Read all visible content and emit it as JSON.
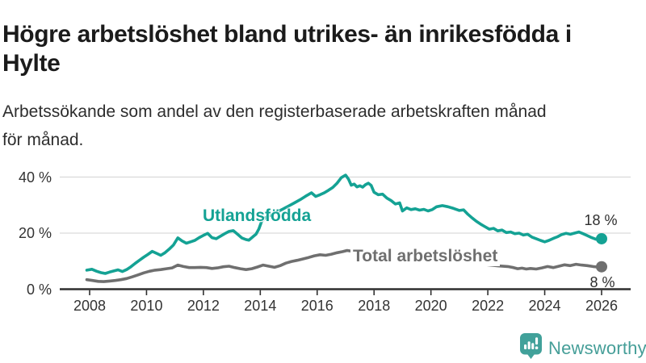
{
  "header": {
    "title_line1": "Högre arbetslöshet bland utrikes- än inrikesfödda i",
    "title_line2": "Hylte",
    "subtitle_line1": "Arbetssökande som andel av den registerbaserade arbetskraften månad",
    "subtitle_line2": "för månad."
  },
  "footer": {
    "brand": "Newsworthy",
    "brand_color": "#459e98",
    "logo_icon": "newsworthy-speech-bubble-bar-chart-icon",
    "logo_icon_color": "#41a19a"
  },
  "chart_data": {
    "type": "line",
    "title": "Högre arbetslöshet bland utrikes- än inrikesfödda i Hylte",
    "subtitle": "Arbetssökande som andel av den registerbaserade arbetskraften månad för månad.",
    "unit": "%",
    "grid": "horizontal-only",
    "legend_position": "inline-labels",
    "xlim": [
      2007.9,
      2026.3
    ],
    "ylim": [
      0,
      44
    ],
    "x_tick_years": [
      2008,
      2010,
      2012,
      2014,
      2016,
      2018,
      2020,
      2022,
      2024,
      2026
    ],
    "x_tick_labels": [
      "2008",
      "2010",
      "2012",
      "2014",
      "2016",
      "2018",
      "2020",
      "2022",
      "2024",
      "2026"
    ],
    "y_tick_values": [
      0,
      20,
      40
    ],
    "y_tick_labels": [
      "0 %",
      "20 %",
      "40 %"
    ],
    "grid_color": "#d9d9d9",
    "axis_color": "#2f2f2f",
    "series": [
      {
        "name": "Utlandsfödda",
        "color": "#14a294",
        "end_label": "18 %",
        "end_value": 18,
        "points": [
          [
            2007.9,
            6.8
          ],
          [
            2008.08,
            7.1
          ],
          [
            2008.25,
            6.4
          ],
          [
            2008.4,
            5.9
          ],
          [
            2008.55,
            5.6
          ],
          [
            2008.7,
            6.1
          ],
          [
            2008.85,
            6.5
          ],
          [
            2009.0,
            6.9
          ],
          [
            2009.15,
            6.3
          ],
          [
            2009.3,
            7.0
          ],
          [
            2009.45,
            8.0
          ],
          [
            2009.6,
            9.2
          ],
          [
            2009.75,
            10.3
          ],
          [
            2009.9,
            11.4
          ],
          [
            2010.05,
            12.4
          ],
          [
            2010.2,
            13.5
          ],
          [
            2010.35,
            12.8
          ],
          [
            2010.5,
            12.1
          ],
          [
            2010.65,
            13.0
          ],
          [
            2010.8,
            14.3
          ],
          [
            2010.95,
            15.8
          ],
          [
            2011.1,
            18.3
          ],
          [
            2011.25,
            17.2
          ],
          [
            2011.4,
            16.4
          ],
          [
            2011.55,
            16.9
          ],
          [
            2011.7,
            17.4
          ],
          [
            2011.85,
            18.4
          ],
          [
            2012.0,
            19.2
          ],
          [
            2012.15,
            19.9
          ],
          [
            2012.3,
            18.4
          ],
          [
            2012.45,
            18.0
          ],
          [
            2012.6,
            18.9
          ],
          [
            2012.75,
            19.8
          ],
          [
            2012.9,
            20.6
          ],
          [
            2013.05,
            20.9
          ],
          [
            2013.2,
            19.6
          ],
          [
            2013.35,
            18.3
          ],
          [
            2013.5,
            17.7
          ],
          [
            2013.6,
            17.5
          ],
          [
            2013.75,
            18.8
          ],
          [
            2013.85,
            19.6
          ],
          [
            2013.95,
            21.5
          ],
          [
            2014.05,
            24.3
          ],
          [
            2014.2,
            25.6
          ],
          [
            2014.4,
            26.5
          ],
          [
            2014.6,
            27.6
          ],
          [
            2014.8,
            28.6
          ],
          [
            2015.0,
            29.7
          ],
          [
            2015.2,
            30.8
          ],
          [
            2015.4,
            31.9
          ],
          [
            2015.6,
            33.2
          ],
          [
            2015.8,
            34.4
          ],
          [
            2015.95,
            33.1
          ],
          [
            2016.1,
            33.7
          ],
          [
            2016.25,
            34.4
          ],
          [
            2016.4,
            35.3
          ],
          [
            2016.55,
            36.3
          ],
          [
            2016.7,
            37.8
          ],
          [
            2016.85,
            39.8
          ],
          [
            2017.0,
            40.7
          ],
          [
            2017.1,
            39.3
          ],
          [
            2017.2,
            37.1
          ],
          [
            2017.3,
            37.5
          ],
          [
            2017.4,
            36.5
          ],
          [
            2017.5,
            36.9
          ],
          [
            2017.6,
            36.4
          ],
          [
            2017.7,
            37.3
          ],
          [
            2017.8,
            37.8
          ],
          [
            2017.9,
            37.0
          ],
          [
            2018.0,
            34.6
          ],
          [
            2018.15,
            33.7
          ],
          [
            2018.3,
            33.9
          ],
          [
            2018.45,
            32.5
          ],
          [
            2018.6,
            31.6
          ],
          [
            2018.75,
            30.4
          ],
          [
            2018.9,
            30.8
          ],
          [
            2019.0,
            27.9
          ],
          [
            2019.15,
            29.0
          ],
          [
            2019.3,
            28.4
          ],
          [
            2019.45,
            28.7
          ],
          [
            2019.6,
            28.2
          ],
          [
            2019.75,
            28.5
          ],
          [
            2019.9,
            27.9
          ],
          [
            2020.05,
            28.4
          ],
          [
            2020.2,
            29.4
          ],
          [
            2020.4,
            29.8
          ],
          [
            2020.6,
            29.4
          ],
          [
            2020.8,
            28.8
          ],
          [
            2021.0,
            28.1
          ],
          [
            2021.15,
            28.3
          ],
          [
            2021.3,
            26.7
          ],
          [
            2021.45,
            25.4
          ],
          [
            2021.6,
            24.2
          ],
          [
            2021.75,
            23.2
          ],
          [
            2021.9,
            22.3
          ],
          [
            2022.05,
            21.4
          ],
          [
            2022.2,
            21.7
          ],
          [
            2022.35,
            20.8
          ],
          [
            2022.5,
            21.1
          ],
          [
            2022.65,
            20.2
          ],
          [
            2022.8,
            20.4
          ],
          [
            2022.95,
            19.8
          ],
          [
            2023.1,
            20.0
          ],
          [
            2023.25,
            19.3
          ],
          [
            2023.4,
            19.6
          ],
          [
            2023.55,
            18.6
          ],
          [
            2023.7,
            18.0
          ],
          [
            2023.85,
            17.4
          ],
          [
            2024.0,
            16.9
          ],
          [
            2024.15,
            17.4
          ],
          [
            2024.3,
            18.1
          ],
          [
            2024.45,
            18.7
          ],
          [
            2024.6,
            19.5
          ],
          [
            2024.75,
            19.9
          ],
          [
            2024.9,
            19.6
          ],
          [
            2025.05,
            20.0
          ],
          [
            2025.2,
            20.4
          ],
          [
            2025.35,
            19.8
          ],
          [
            2025.5,
            19.1
          ],
          [
            2025.65,
            18.4
          ],
          [
            2025.8,
            17.8
          ],
          [
            2026.0,
            18.0
          ]
        ]
      },
      {
        "name": "Total arbetslöshet",
        "color": "#6f6f6f",
        "end_label": "8 %",
        "end_value": 8,
        "points": [
          [
            2007.9,
            3.4
          ],
          [
            2008.1,
            3.1
          ],
          [
            2008.3,
            2.8
          ],
          [
            2008.5,
            2.7
          ],
          [
            2008.7,
            2.9
          ],
          [
            2008.9,
            3.1
          ],
          [
            2009.1,
            3.4
          ],
          [
            2009.3,
            3.8
          ],
          [
            2009.5,
            4.4
          ],
          [
            2009.7,
            5.1
          ],
          [
            2009.9,
            5.8
          ],
          [
            2010.1,
            6.4
          ],
          [
            2010.3,
            6.8
          ],
          [
            2010.5,
            7.0
          ],
          [
            2010.7,
            7.3
          ],
          [
            2010.9,
            7.6
          ],
          [
            2011.1,
            8.6
          ],
          [
            2011.3,
            8.1
          ],
          [
            2011.5,
            7.7
          ],
          [
            2011.7,
            7.7
          ],
          [
            2011.9,
            7.8
          ],
          [
            2012.1,
            7.7
          ],
          [
            2012.3,
            7.4
          ],
          [
            2012.5,
            7.6
          ],
          [
            2012.7,
            8.0
          ],
          [
            2012.9,
            8.2
          ],
          [
            2013.1,
            7.7
          ],
          [
            2013.3,
            7.3
          ],
          [
            2013.5,
            7.0
          ],
          [
            2013.7,
            7.3
          ],
          [
            2013.9,
            7.9
          ],
          [
            2014.1,
            8.6
          ],
          [
            2014.3,
            8.2
          ],
          [
            2014.5,
            7.8
          ],
          [
            2014.7,
            8.4
          ],
          [
            2014.9,
            9.3
          ],
          [
            2015.1,
            9.9
          ],
          [
            2015.3,
            10.3
          ],
          [
            2015.5,
            10.8
          ],
          [
            2015.7,
            11.3
          ],
          [
            2015.9,
            11.9
          ],
          [
            2016.1,
            12.3
          ],
          [
            2016.3,
            12.1
          ],
          [
            2016.5,
            12.5
          ],
          [
            2016.7,
            13.0
          ],
          [
            2016.9,
            13.4
          ],
          [
            2017.05,
            13.8
          ],
          [
            2017.3,
            13.4
          ],
          [
            2017.6,
            13.0
          ],
          [
            2018.0,
            12.3
          ],
          [
            2018.5,
            11.5
          ],
          [
            2019.0,
            10.7
          ],
          [
            2019.5,
            10.1
          ],
          [
            2020.0,
            10.0
          ],
          [
            2020.4,
            10.7
          ],
          [
            2020.8,
            10.4
          ],
          [
            2021.2,
            9.8
          ],
          [
            2021.6,
            9.2
          ],
          [
            2022.0,
            8.7
          ],
          [
            2022.4,
            8.3
          ],
          [
            2022.7,
            8.1
          ],
          [
            2022.9,
            7.7
          ],
          [
            2023.05,
            7.3
          ],
          [
            2023.2,
            7.5
          ],
          [
            2023.35,
            7.2
          ],
          [
            2023.5,
            7.4
          ],
          [
            2023.7,
            7.2
          ],
          [
            2023.9,
            7.6
          ],
          [
            2024.1,
            8.1
          ],
          [
            2024.3,
            7.7
          ],
          [
            2024.5,
            8.2
          ],
          [
            2024.7,
            8.7
          ],
          [
            2024.9,
            8.4
          ],
          [
            2025.1,
            8.9
          ],
          [
            2025.3,
            8.6
          ],
          [
            2025.5,
            8.4
          ],
          [
            2025.7,
            8.1
          ],
          [
            2025.85,
            7.9
          ],
          [
            2026.0,
            8.0
          ]
        ]
      }
    ]
  }
}
